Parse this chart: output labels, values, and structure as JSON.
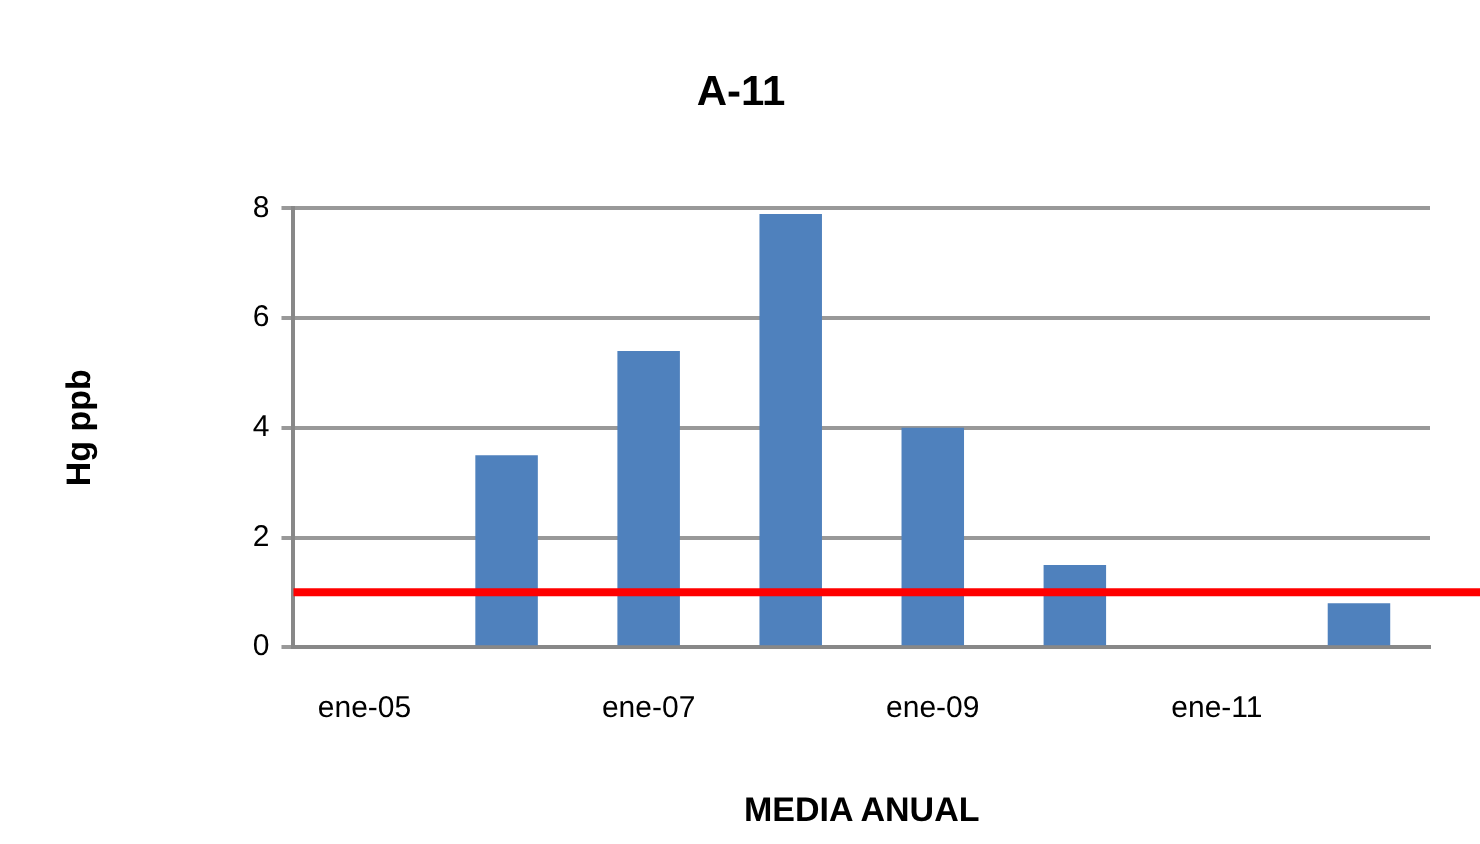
{
  "chart_data": {
    "type": "bar",
    "title": "A-11",
    "xlabel": "MEDIA ANUAL",
    "ylabel": "Hg ppb",
    "categories": [
      "ene-05",
      null,
      "ene-07",
      null,
      "ene-09",
      null,
      "ene-11",
      null
    ],
    "values": [
      null,
      3.5,
      5.4,
      7.9,
      4,
      1.5,
      null,
      0.8
    ],
    "color": "#4f81bd",
    "ylim": [
      0,
      8
    ],
    "yticks": [
      0,
      2,
      4,
      6,
      8
    ],
    "grid": "y",
    "ref_lines": [
      {
        "axis": "y",
        "value": 1,
        "color": "#ff0000",
        "line_style": "solid"
      }
    ]
  }
}
